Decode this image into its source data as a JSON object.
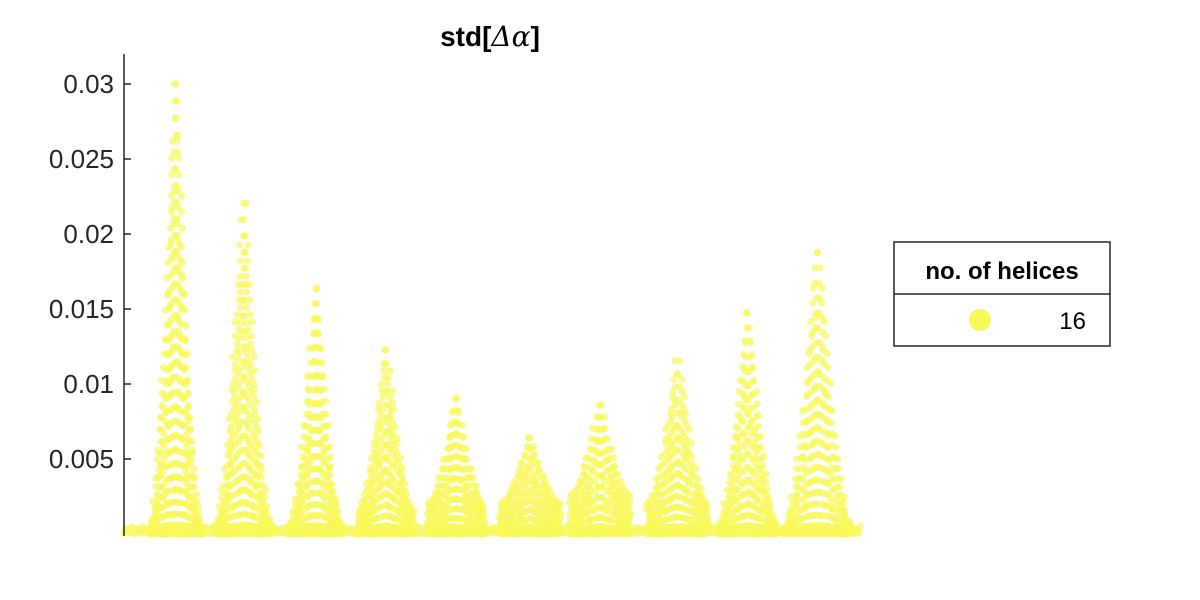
{
  "chart_data": {
    "type": "scatter",
    "title_text": "std[",
    "title_symbol": "Δα",
    "title_close": "]",
    "xlabel": "",
    "ylabel": "",
    "ylim": [
      0,
      0.032
    ],
    "y_ticks": [
      0.005,
      0.01,
      0.015,
      0.02,
      0.025,
      0.03
    ],
    "y_tick_labels": [
      "0.005",
      "0.01",
      "0.015",
      "0.02",
      "0.025",
      "0.03"
    ],
    "x_ticks_visible": false,
    "grid": false,
    "legend": {
      "title": "no. of helices",
      "entries": [
        {
          "label": "16",
          "color": "#f7f758"
        }
      ],
      "placement": "right"
    },
    "marker_color": "#f7f758",
    "marker_opacity": 0.65,
    "groups": [
      {
        "x_center": 0.07,
        "x_width": 0.07,
        "peak": 0.032,
        "base": 0.0005
      },
      {
        "x_center": 0.162,
        "x_width": 0.075,
        "peak": 0.0235,
        "base": 0.0006
      },
      {
        "x_center": 0.26,
        "x_width": 0.07,
        "peak": 0.0174,
        "base": 0.0006
      },
      {
        "x_center": 0.355,
        "x_width": 0.075,
        "peak": 0.013,
        "base": 0.0015
      },
      {
        "x_center": 0.45,
        "x_width": 0.075,
        "peak": 0.0095,
        "base": 0.002
      },
      {
        "x_center": 0.55,
        "x_width": 0.08,
        "peak": 0.0067,
        "base": 0.002
      },
      {
        "x_center": 0.645,
        "x_width": 0.08,
        "peak": 0.009,
        "base": 0.0025
      },
      {
        "x_center": 0.75,
        "x_width": 0.08,
        "peak": 0.0122,
        "base": 0.002
      },
      {
        "x_center": 0.845,
        "x_width": 0.08,
        "peak": 0.0157,
        "base": 0.0005
      },
      {
        "x_center": 0.94,
        "x_width": 0.09,
        "peak": 0.02,
        "base": 0.0005
      }
    ]
  }
}
